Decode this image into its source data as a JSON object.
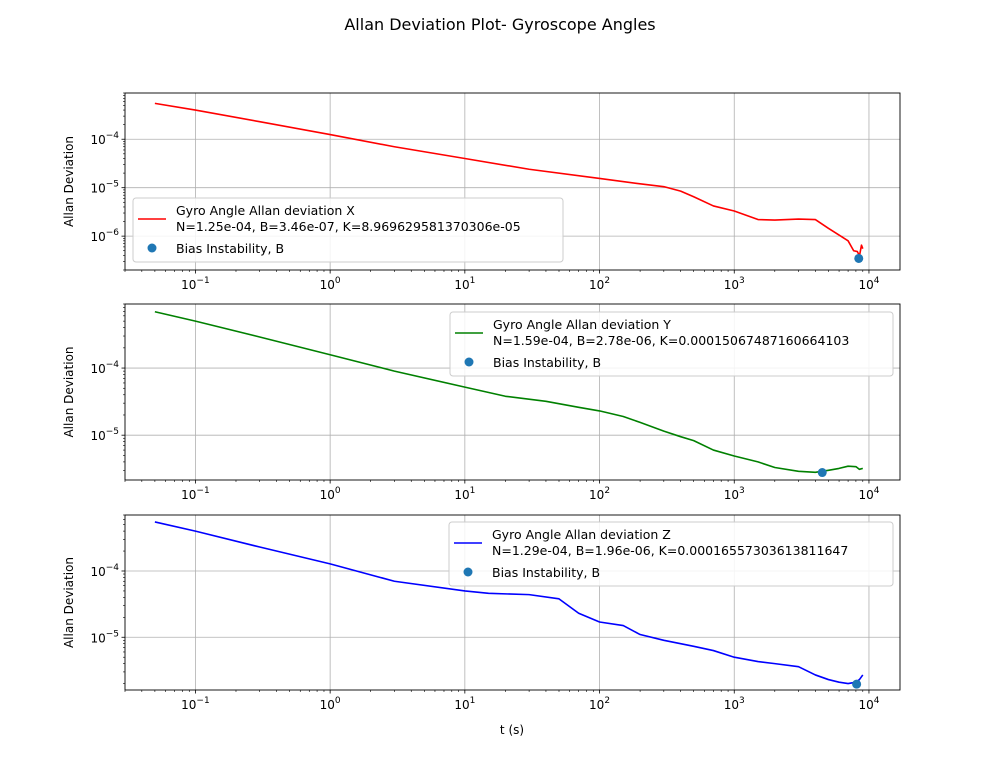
{
  "figure": {
    "title": "Allan Deviation Plot- Gyroscope Angles",
    "xlabel": "t (s)"
  },
  "chart_data": [
    {
      "type": "line",
      "xscale": "log",
      "yscale": "log",
      "xlim": [
        0.03,
        17000
      ],
      "ylim": [
        2e-07,
        0.0009
      ],
      "grid": true,
      "ylabel": "Allan Deviation",
      "xticks": [
        {
          "value": 0.1,
          "label": "10^-1"
        },
        {
          "value": 1,
          "label": "10^0"
        },
        {
          "value": 10,
          "label": "10^1"
        },
        {
          "value": 100,
          "label": "10^2"
        },
        {
          "value": 1000,
          "label": "10^3"
        },
        {
          "value": 10000,
          "label": "10^4"
        }
      ],
      "yticks": [
        {
          "value": 1e-06,
          "label": "10^-6"
        },
        {
          "value": 1e-05,
          "label": "10^-5"
        },
        {
          "value": 0.0001,
          "label": "10^-4"
        }
      ],
      "legend_placement": "lower-left",
      "series": [
        {
          "name": "Gyro Angle Allan deviation X",
          "name_line2": "N=1.25e-04, B=3.46e-07, K=8.969629581370306e-05",
          "color": "#ff0000",
          "x": [
            0.05,
            0.1,
            0.3,
            1,
            3,
            10,
            30,
            100,
            200,
            300,
            400,
            500,
            700,
            1000,
            1500,
            2000,
            3000,
            4000,
            5000,
            6000,
            7000,
            7700,
            8200,
            8500,
            8800,
            9000
          ],
          "y": [
            0.00055,
            0.0004,
            0.00023,
            0.000125,
            7e-05,
            4e-05,
            2.4e-05,
            1.55e-05,
            1.2e-05,
            1.05e-05,
            8.5e-06,
            6.5e-06,
            4.2e-06,
            3.3e-06,
            2.2e-06,
            2.15e-06,
            2.25e-06,
            2.2e-06,
            1.45e-06,
            1.05e-06,
            8e-07,
            5e-07,
            4.8e-07,
            3.9e-07,
            6.5e-07,
            5.5e-07
          ]
        },
        {
          "name": "Bias Instability, B",
          "marker": "point",
          "color": "#1f77b4",
          "x": [
            8400
          ],
          "y": [
            3.46e-07
          ]
        }
      ]
    },
    {
      "type": "line",
      "xscale": "log",
      "yscale": "log",
      "xlim": [
        0.03,
        17000
      ],
      "ylim": [
        2.15e-06,
        0.0009
      ],
      "grid": true,
      "ylabel": "Allan Deviation",
      "xticks": [
        {
          "value": 0.1,
          "label": "10^-1"
        },
        {
          "value": 1,
          "label": "10^0"
        },
        {
          "value": 10,
          "label": "10^1"
        },
        {
          "value": 100,
          "label": "10^2"
        },
        {
          "value": 1000,
          "label": "10^3"
        },
        {
          "value": 10000,
          "label": "10^4"
        }
      ],
      "yticks": [
        {
          "value": 1e-05,
          "label": "10^-5"
        },
        {
          "value": 0.0001,
          "label": "10^-4"
        }
      ],
      "legend_placement": "upper-right",
      "series": [
        {
          "name": "Gyro Angle Allan deviation Y",
          "name_line2": "N=1.59e-04, B=2.78e-06, K=0.00015067487160664103",
          "color": "#008000",
          "x": [
            0.05,
            0.1,
            0.3,
            1,
            3,
            10,
            20,
            40,
            70,
            100,
            150,
            200,
            300,
            400,
            500,
            700,
            1000,
            1500,
            2000,
            3000,
            4000,
            5000,
            6000,
            7000,
            8000,
            8500,
            9000
          ],
          "y": [
            0.00069,
            0.0005,
            0.00029,
            0.000158,
            9e-05,
            5.2e-05,
            3.8e-05,
            3.2e-05,
            2.6e-05,
            2.3e-05,
            1.9e-05,
            1.55e-05,
            1.15e-05,
            9.5e-06,
            8.3e-06,
            6e-06,
            4.9e-06,
            4e-06,
            3.3e-06,
            2.9e-06,
            2.8e-06,
            3e-06,
            3.2e-06,
            3.45e-06,
            3.4e-06,
            3.1e-06,
            3.2e-06
          ]
        },
        {
          "name": "Bias Instability, B",
          "marker": "point",
          "color": "#1f77b4",
          "x": [
            4500
          ],
          "y": [
            2.78e-06
          ]
        }
      ]
    },
    {
      "type": "line",
      "xscale": "log",
      "yscale": "log",
      "xlim": [
        0.03,
        17000
      ],
      "ylim": [
        1.6e-06,
        0.0007
      ],
      "grid": true,
      "ylabel": "Allan Deviation",
      "xticks": [
        {
          "value": 0.1,
          "label": "10^-1"
        },
        {
          "value": 1,
          "label": "10^0"
        },
        {
          "value": 10,
          "label": "10^1"
        },
        {
          "value": 100,
          "label": "10^2"
        },
        {
          "value": 1000,
          "label": "10^3"
        },
        {
          "value": 10000,
          "label": "10^4"
        }
      ],
      "yticks": [
        {
          "value": 1e-05,
          "label": "10^-5"
        },
        {
          "value": 0.0001,
          "label": "10^-4"
        }
      ],
      "legend_placement": "upper-right",
      "series": [
        {
          "name": "Gyro Angle Allan deviation Z",
          "name_line2": "N=1.29e-04, B=1.96e-06, K=0.00016557303613811647",
          "color": "#0000ff",
          "x": [
            0.05,
            0.1,
            0.3,
            1,
            3,
            10,
            15,
            30,
            50,
            70,
            100,
            150,
            200,
            300,
            400,
            500,
            700,
            1000,
            1500,
            2000,
            3000,
            4000,
            5000,
            6000,
            7000,
            8000,
            8500,
            9000
          ],
          "y": [
            0.00055,
            0.0004,
            0.00023,
            0.000128,
            7e-05,
            5e-05,
            4.6e-05,
            4.4e-05,
            3.8e-05,
            2.3e-05,
            1.7e-05,
            1.5e-05,
            1.1e-05,
            9e-06,
            8e-06,
            7.3e-06,
            6.3e-06,
            5e-06,
            4.3e-06,
            4e-06,
            3.6e-06,
            2.7e-06,
            2.3e-06,
            2.1e-06,
            2e-06,
            2.1e-06,
            2.3e-06,
            2.7e-06
          ]
        },
        {
          "name": "Bias Instability, B",
          "marker": "point",
          "color": "#1f77b4",
          "x": [
            8100
          ],
          "y": [
            1.96e-06
          ]
        }
      ]
    }
  ]
}
